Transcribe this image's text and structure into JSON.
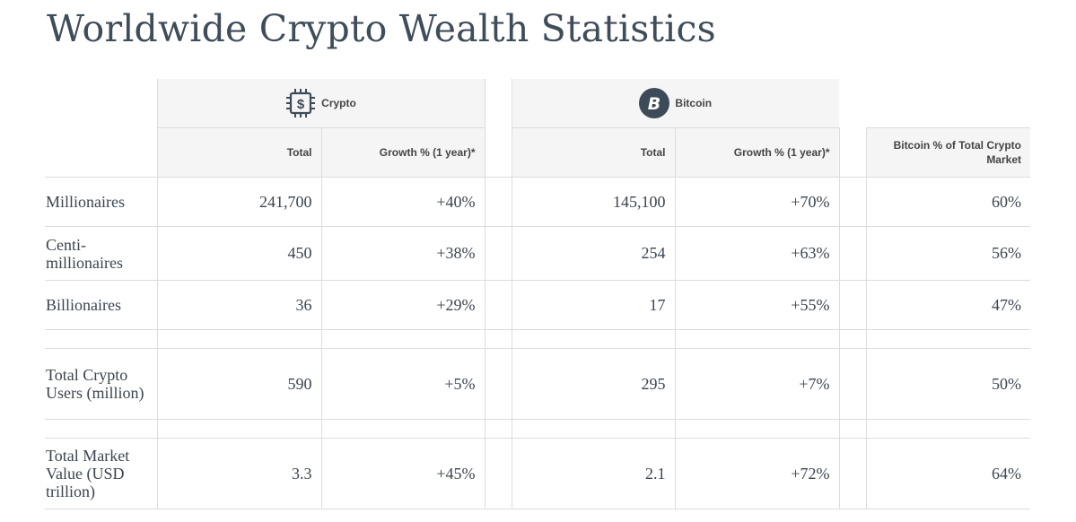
{
  "title": "Worldwide Crypto Wealth Statistics",
  "groups": {
    "crypto": {
      "label": "Crypto",
      "icon": "chip-dollar-icon"
    },
    "bitcoin": {
      "label": "Bitcoin",
      "icon": "bitcoin-icon"
    }
  },
  "columns": {
    "crypto_total": "Total",
    "crypto_growth": "Growth % (1 year)*",
    "bitcoin_total": "Total",
    "bitcoin_growth": "Growth % (1 year)*",
    "bitcoin_share": "Bitcoin % of Total Crypto Market"
  },
  "rows": [
    {
      "label": "Millionaires",
      "crypto_total": "241,700",
      "crypto_growth": "+40%",
      "bitcoin_total": "145,100",
      "bitcoin_growth": "+70%",
      "bitcoin_share": "60%"
    },
    {
      "label": "Centi-millionaires",
      "crypto_total": "450",
      "crypto_growth": "+38%",
      "bitcoin_total": "254",
      "bitcoin_growth": "+63%",
      "bitcoin_share": "56%"
    },
    {
      "label": "Billionaires",
      "crypto_total": "36",
      "crypto_growth": "+29%",
      "bitcoin_total": "17",
      "bitcoin_growth": "+55%",
      "bitcoin_share": "47%"
    },
    {
      "label": "Total Crypto Users (million)",
      "crypto_total": "590",
      "crypto_growth": "+5%",
      "bitcoin_total": "295",
      "bitcoin_growth": "+7%",
      "bitcoin_share": "50%"
    },
    {
      "label": "Total Market Value (USD trillion)",
      "crypto_total": "3.3",
      "crypto_growth": "+45%",
      "bitcoin_total": "2.1",
      "bitcoin_growth": "+72%",
      "bitcoin_share": "64%"
    }
  ],
  "colors": {
    "text": "#3a4550",
    "header_bg": "#f5f5f5",
    "icon": "#3d4b59",
    "grid": "#dcdcdc"
  }
}
